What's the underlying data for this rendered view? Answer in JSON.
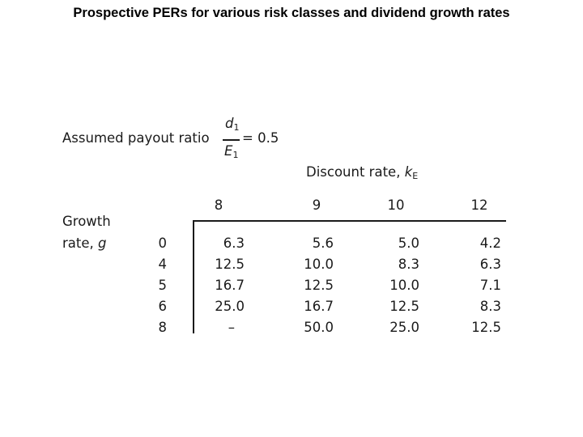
{
  "title": "Prospective PERs for various risk classes and dividend growth rates",
  "payout": {
    "label": "Assumed payout ratio",
    "numerator": "d",
    "numerator_sub": "1",
    "denominator": "E",
    "denominator_sub": "1",
    "equals": "=",
    "value": "= 0.5"
  },
  "discount_header": {
    "label": "Discount rate,",
    "symbol": "k",
    "symbol_sub": "E"
  },
  "growth_header": {
    "line1": "Growth",
    "line2": "rate,",
    "symbol": "g"
  },
  "columns": [
    "8",
    "9",
    "10",
    "12"
  ],
  "rows": [
    {
      "g": "0",
      "values": [
        "6.3",
        "5.6",
        "5.0",
        "4.2"
      ]
    },
    {
      "g": "4",
      "values": [
        "12.5",
        "10.0",
        "8.3",
        "6.3"
      ]
    },
    {
      "g": "5",
      "values": [
        "16.7",
        "12.5",
        "10.0",
        "7.1"
      ]
    },
    {
      "g": "6",
      "values": [
        "25.0",
        "16.7",
        "12.5",
        "8.3"
      ]
    },
    {
      "g": "8",
      "values": [
        "–",
        "50.0",
        "25.0",
        "12.5"
      ]
    }
  ]
}
